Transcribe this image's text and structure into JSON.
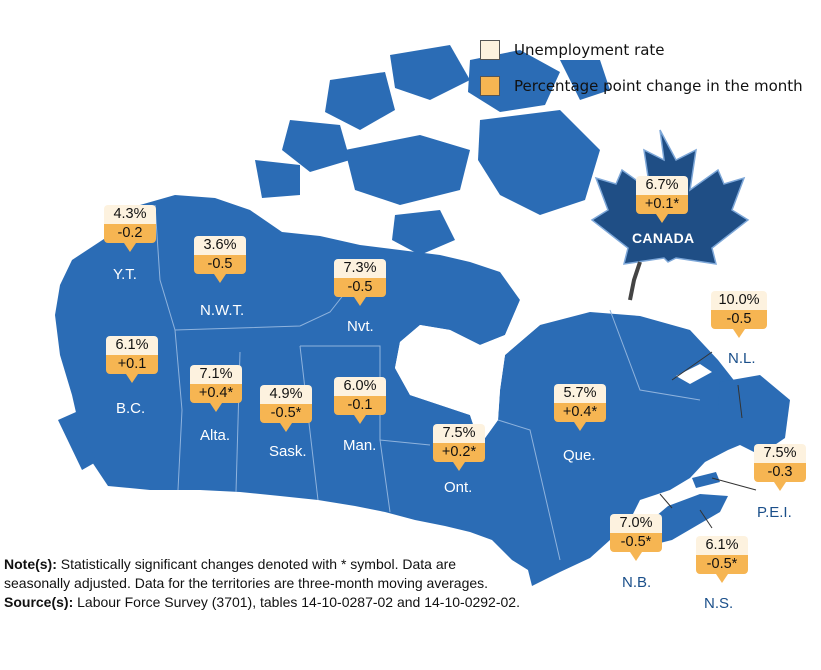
{
  "legend": {
    "rate_label": "Unemployment rate",
    "change_label": "Percentage point change in the month",
    "rate_color": "#fdf2df",
    "change_color": "#f6b552"
  },
  "colors": {
    "land": "#2b6cb5",
    "water": "#ffffff",
    "leaf": "#1f4e85",
    "border": "#8fb3dd"
  },
  "national": {
    "label": "CANADA",
    "rate": "6.7%",
    "change": "+0.1*"
  },
  "regions": [
    {
      "id": "yt",
      "label": "Y.T.",
      "rate": "4.3%",
      "change": "-0.2"
    },
    {
      "id": "nwt",
      "label": "N.W.T.",
      "rate": "3.6%",
      "change": "-0.5"
    },
    {
      "id": "nvt",
      "label": "Nvt.",
      "rate": "7.3%",
      "change": "-0.5"
    },
    {
      "id": "bc",
      "label": "B.C.",
      "rate": "6.1%",
      "change": "+0.1"
    },
    {
      "id": "alta",
      "label": "Alta.",
      "rate": "7.1%",
      "change": "+0.4*"
    },
    {
      "id": "sask",
      "label": "Sask.",
      "rate": "4.9%",
      "change": "-0.5*"
    },
    {
      "id": "man",
      "label": "Man.",
      "rate": "6.0%",
      "change": "-0.1"
    },
    {
      "id": "ont",
      "label": "Ont.",
      "rate": "7.5%",
      "change": "+0.2*"
    },
    {
      "id": "que",
      "label": "Que.",
      "rate": "5.7%",
      "change": "+0.4*"
    },
    {
      "id": "nl",
      "label": "N.L.",
      "rate": "10.0%",
      "change": "-0.5"
    },
    {
      "id": "pei",
      "label": "P.E.I.",
      "rate": "7.5%",
      "change": "-0.3"
    },
    {
      "id": "nb",
      "label": "N.B.",
      "rate": "7.0%",
      "change": "-0.5*"
    },
    {
      "id": "ns",
      "label": "N.S.",
      "rate": "6.1%",
      "change": "-0.5*"
    }
  ],
  "notes": {
    "note_heading": "Note(s):",
    "note_text": "Statistically significant changes denoted with * symbol. Data are seasonally adjusted. Data for the territories are three-month moving averages.",
    "source_heading": "Source(s):",
    "source_text": "Labour Force Survey (3701), tables 14-10-0287-02 and 14-10-0292-02."
  }
}
